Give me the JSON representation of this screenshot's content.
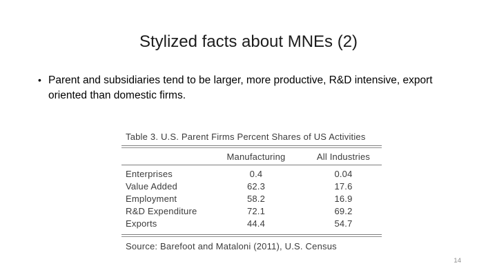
{
  "slide": {
    "title": "Stylized facts about MNEs (2)",
    "bullet_marker": "•",
    "bullet": "Parent and subsidiaries tend to be larger, more productive, R&D intensive, export oriented than domestic firms.",
    "page_number": "14"
  },
  "table": {
    "caption": "Table 3.  U.S. Parent Firms Percent Shares of US Activities",
    "columns": [
      "",
      "Manufacturing",
      "All Industries"
    ],
    "rows": [
      {
        "label": "Enterprises",
        "manufacturing": "0.4",
        "all_industries": "0.04"
      },
      {
        "label": "Value Added",
        "manufacturing": "62.3",
        "all_industries": "17.6"
      },
      {
        "label": "Employment",
        "manufacturing": "58.2",
        "all_industries": "16.9"
      },
      {
        "label": "R&D Expenditure",
        "manufacturing": "72.1",
        "all_industries": "69.2"
      },
      {
        "label": "Exports",
        "manufacturing": "44.4",
        "all_industries": "54.7"
      }
    ],
    "source": "Source: Barefoot and Mataloni (2011), U.S. Census"
  },
  "colors": {
    "background": "#ffffff",
    "title_text": "#1c1c1c",
    "body_text": "#000000",
    "table_text": "#3b3b3b",
    "rule_gray": "#7d7d7d",
    "page_number_gray": "#8c8c8c"
  }
}
